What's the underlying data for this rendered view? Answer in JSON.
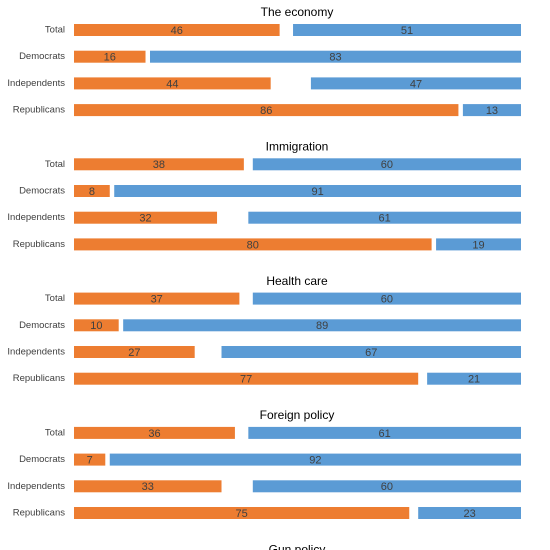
{
  "chart_data": [
    {
      "type": "bar",
      "title": "The economy",
      "categories": [
        "Total",
        "Democrats",
        "Independents",
        "Republicans"
      ],
      "series": [
        {
          "color": "#ed7d31",
          "values": [
            46,
            16,
            44,
            86
          ]
        },
        {
          "color": "#5b9bd5",
          "values": [
            51,
            83,
            47,
            13
          ]
        }
      ],
      "xlim": [
        0,
        100
      ]
    },
    {
      "type": "bar",
      "title": "Immigration",
      "categories": [
        "Total",
        "Democrats",
        "Independents",
        "Republicans"
      ],
      "series": [
        {
          "color": "#ed7d31",
          "values": [
            38,
            8,
            32,
            80
          ]
        },
        {
          "color": "#5b9bd5",
          "values": [
            60,
            91,
            61,
            19
          ]
        }
      ],
      "xlim": [
        0,
        100
      ]
    },
    {
      "type": "bar",
      "title": "Health care",
      "categories": [
        "Total",
        "Democrats",
        "Independents",
        "Republicans"
      ],
      "series": [
        {
          "color": "#ed7d31",
          "values": [
            37,
            10,
            27,
            77
          ]
        },
        {
          "color": "#5b9bd5",
          "values": [
            60,
            89,
            67,
            21
          ]
        }
      ],
      "xlim": [
        0,
        100
      ]
    },
    {
      "type": "bar",
      "title": "Foreign policy",
      "categories": [
        "Total",
        "Democrats",
        "Independents",
        "Republicans"
      ],
      "series": [
        {
          "color": "#ed7d31",
          "values": [
            36,
            7,
            33,
            75
          ]
        },
        {
          "color": "#5b9bd5",
          "values": [
            61,
            92,
            60,
            23
          ]
        }
      ],
      "xlim": [
        0,
        100
      ]
    },
    {
      "type": "bar",
      "title": "Gun policy"
    }
  ]
}
